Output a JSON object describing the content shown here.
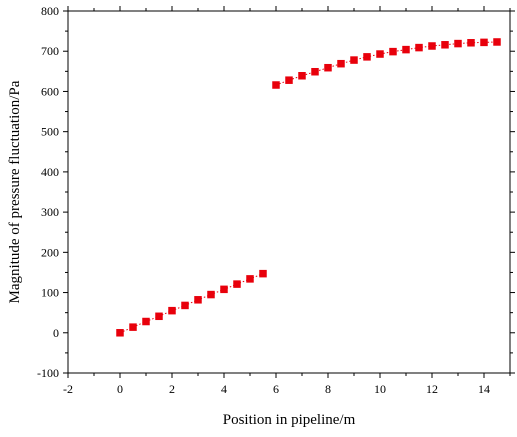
{
  "chart_data": {
    "type": "scatter",
    "title": "",
    "xlabel": "Position in pipeline/m",
    "ylabel": "Magnitude of pressure fluctuation/Pa",
    "xlim": [
      -2,
      15
    ],
    "ylim": [
      -100,
      800
    ],
    "x_ticks": [
      -2,
      0,
      2,
      4,
      6,
      8,
      10,
      12,
      14
    ],
    "y_ticks": [
      -100,
      0,
      100,
      200,
      300,
      400,
      500,
      600,
      700,
      800
    ],
    "grid": false,
    "legend": "none",
    "marker": "square",
    "line_style": "dotted",
    "color": "#e8000b",
    "series": [
      {
        "x": [
          0,
          0.5,
          1,
          1.5,
          2,
          2.5,
          3,
          3.5,
          4,
          4.5,
          5,
          5.5
        ],
        "y": [
          0,
          14,
          28,
          41,
          55,
          68,
          82,
          95,
          108,
          121,
          134,
          147
        ]
      },
      {
        "x": [
          6,
          6.5,
          7,
          7.5,
          8,
          8.5,
          9,
          9.5,
          10,
          10.5,
          11,
          11.5,
          12,
          12.5,
          13,
          13.5,
          14,
          14.5
        ],
        "y": [
          616,
          628,
          639,
          649,
          659,
          669,
          678,
          686,
          693,
          699,
          704,
          709,
          713,
          716,
          719,
          721,
          722,
          723
        ]
      }
    ]
  }
}
